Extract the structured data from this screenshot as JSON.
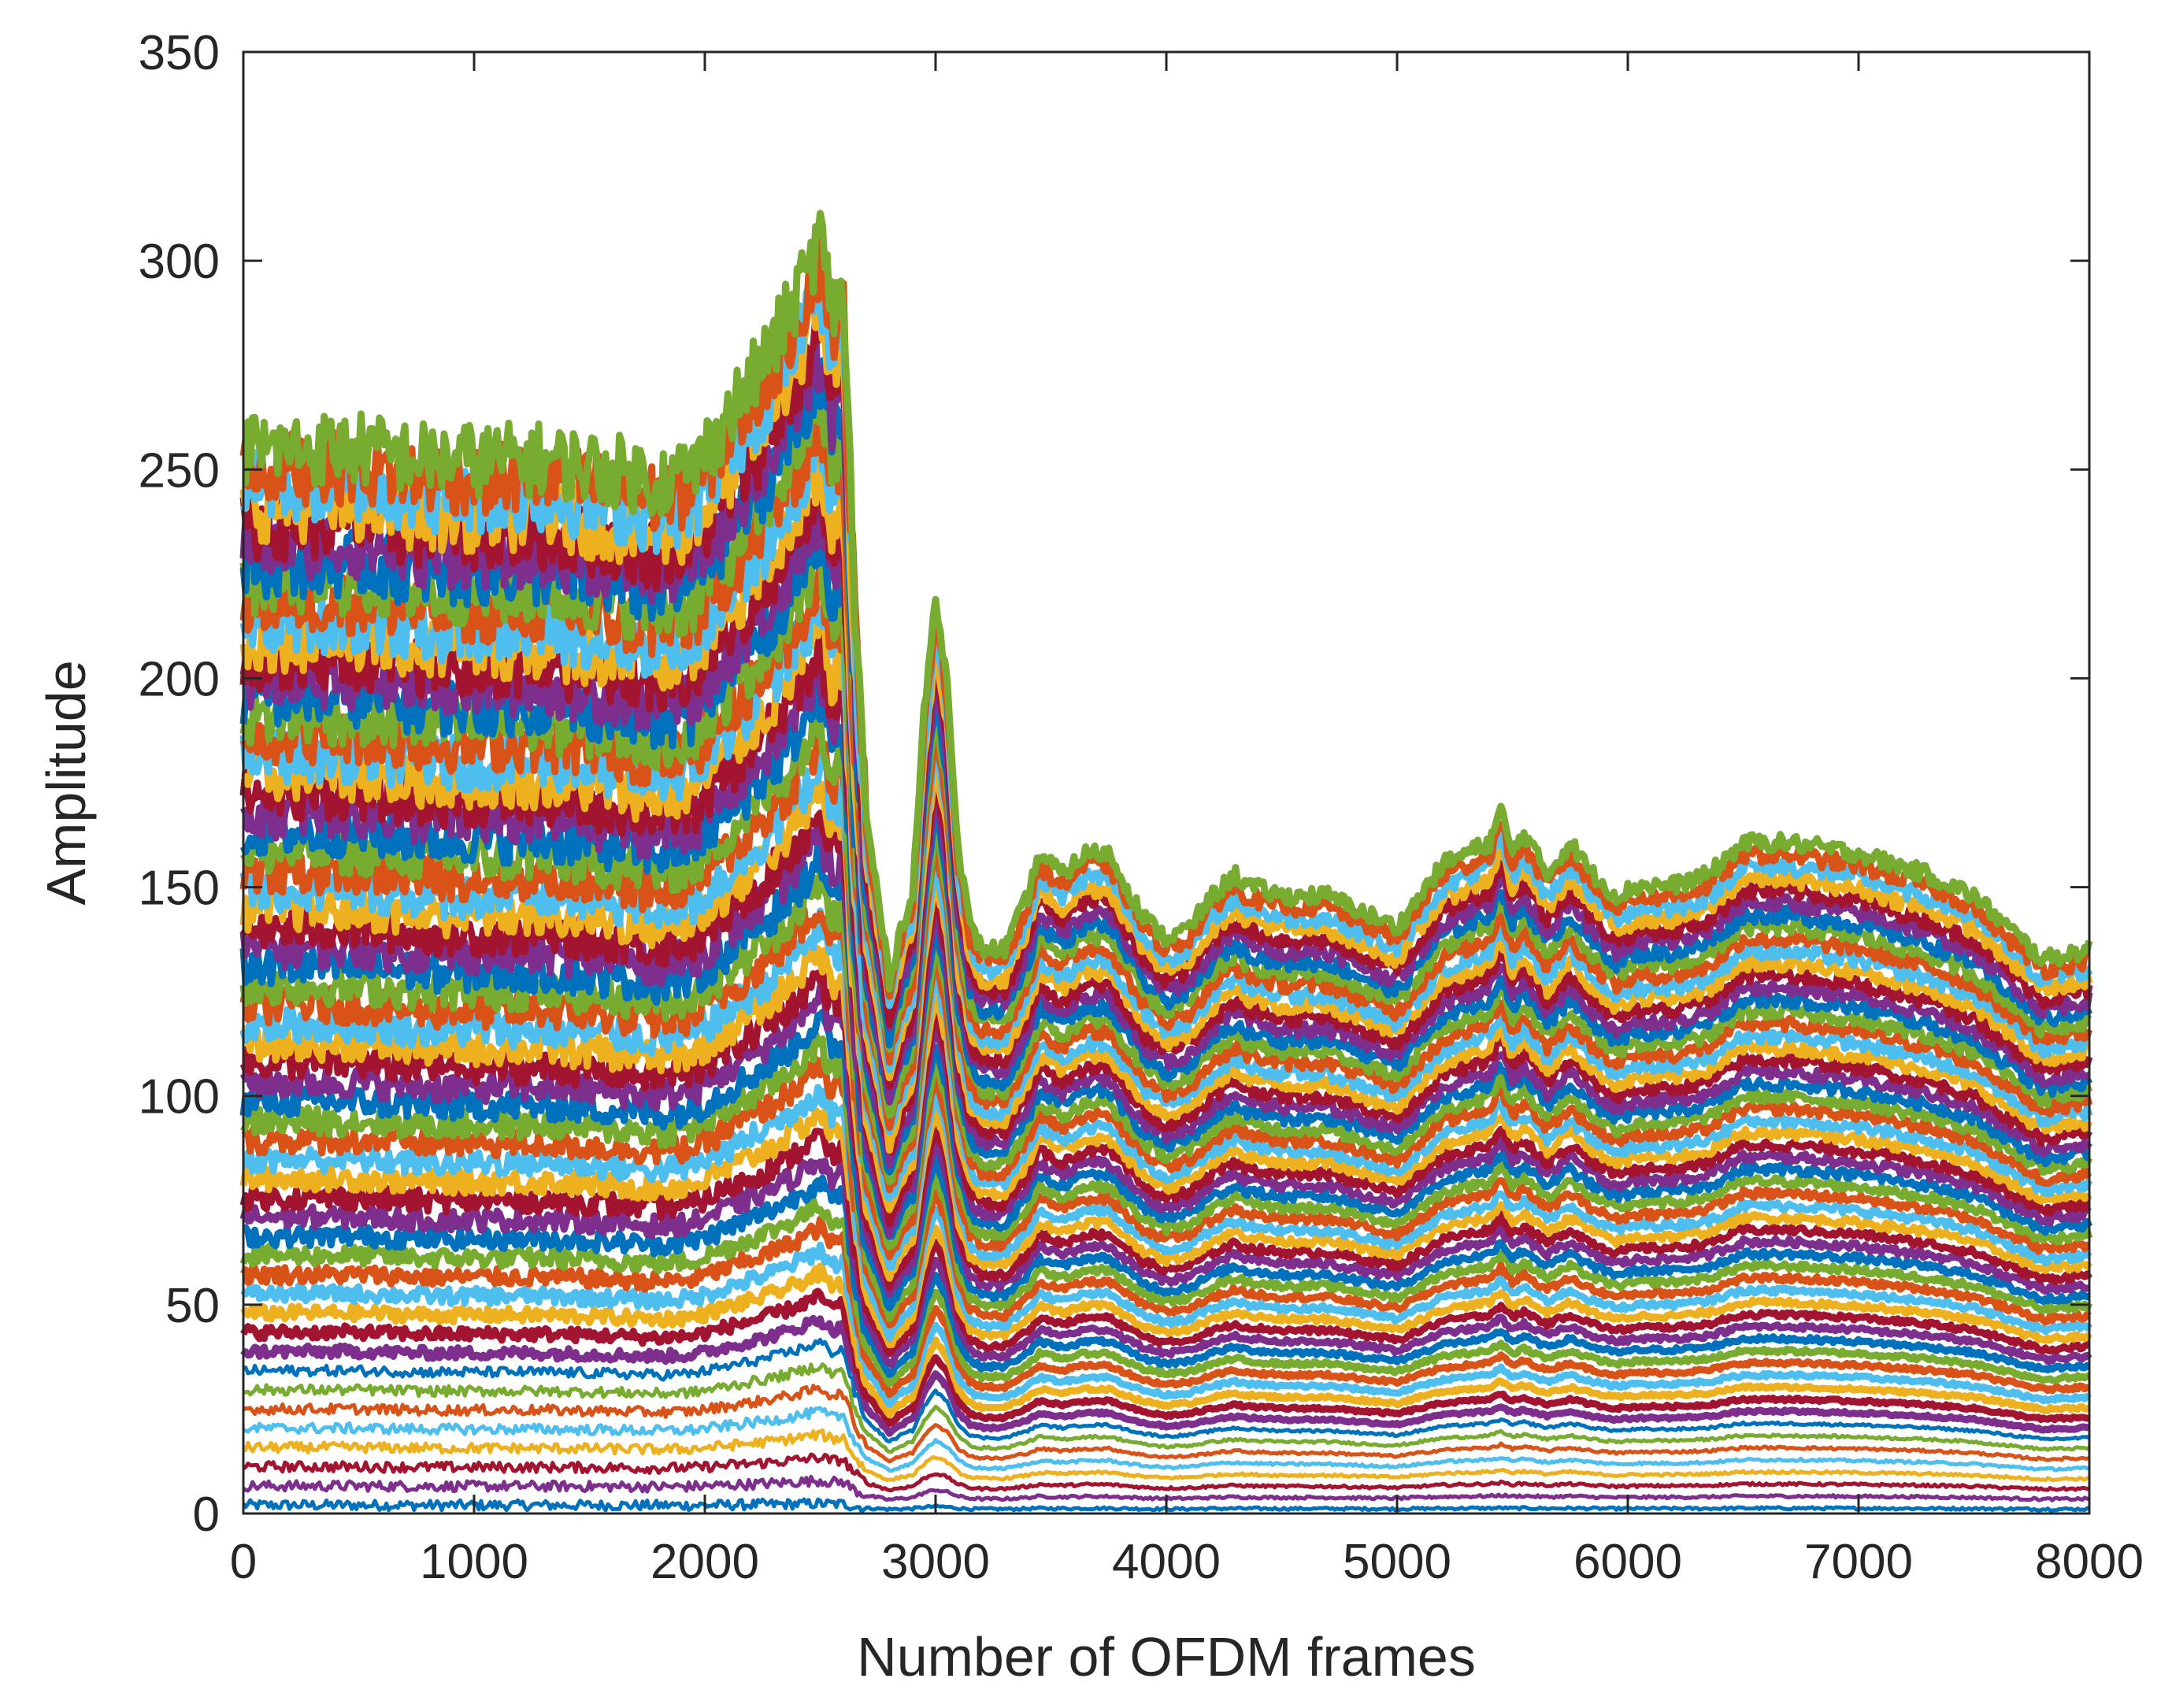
{
  "chart_data": {
    "type": "line",
    "title": "",
    "xlabel": "Number of OFDM frames",
    "ylabel": "Amplitude",
    "xlim": [
      0,
      8000
    ],
    "ylim": [
      0,
      350
    ],
    "xticks": [
      0,
      1000,
      2000,
      3000,
      4000,
      5000,
      6000,
      7000,
      8000
    ],
    "yticks": [
      0,
      50,
      100,
      150,
      200,
      250,
      300,
      350
    ],
    "grid": false,
    "legend": "none",
    "series_count": 56,
    "colors": [
      "#0072BD",
      "#D95319",
      "#EDB120",
      "#7E2F8E",
      "#77AC30",
      "#4DBEEE",
      "#A2142F"
    ],
    "profile_x": [
      0,
      200,
      500,
      800,
      1000,
      1300,
      1600,
      1800,
      1950,
      2100,
      2250,
      2350,
      2450,
      2500,
      2550,
      2600,
      2650,
      2700,
      2750,
      2800,
      2850,
      2900,
      2950,
      3000,
      3050,
      3100,
      3150,
      3200,
      3300,
      3400,
      3450,
      3550,
      3650,
      3750,
      3800,
      3900,
      4000,
      4100,
      4200,
      4300,
      4350,
      4500,
      4700,
      4900,
      5000,
      5100,
      5200,
      5300,
      5400,
      5450,
      5500,
      5550,
      5650,
      5750,
      5850,
      5950,
      6050,
      6200,
      6350,
      6500,
      6700,
      7000,
      7300,
      7500,
      7700,
      7800,
      8000
    ],
    "profile_factor": [
      1.0,
      1.0,
      1.0,
      0.99,
      0.99,
      0.99,
      0.98,
      0.97,
      0.98,
      1.03,
      1.08,
      1.12,
      1.17,
      1.2,
      1.13,
      1.15,
      0.85,
      0.65,
      0.58,
      0.5,
      0.55,
      0.58,
      0.75,
      0.86,
      0.78,
      0.62,
      0.55,
      0.53,
      0.53,
      0.58,
      0.62,
      0.6,
      0.62,
      0.62,
      0.6,
      0.56,
      0.54,
      0.55,
      0.58,
      0.6,
      0.59,
      0.58,
      0.58,
      0.56,
      0.55,
      0.58,
      0.61,
      0.62,
      0.63,
      0.66,
      0.62,
      0.64,
      0.6,
      0.63,
      0.6,
      0.58,
      0.59,
      0.59,
      0.6,
      0.63,
      0.63,
      0.62,
      0.6,
      0.58,
      0.54,
      0.52,
      0.53
    ],
    "initial_levels_start": 2,
    "initial_levels_end": 255,
    "peak_value": 322,
    "peak_x": 2500,
    "end_value": 135
  }
}
